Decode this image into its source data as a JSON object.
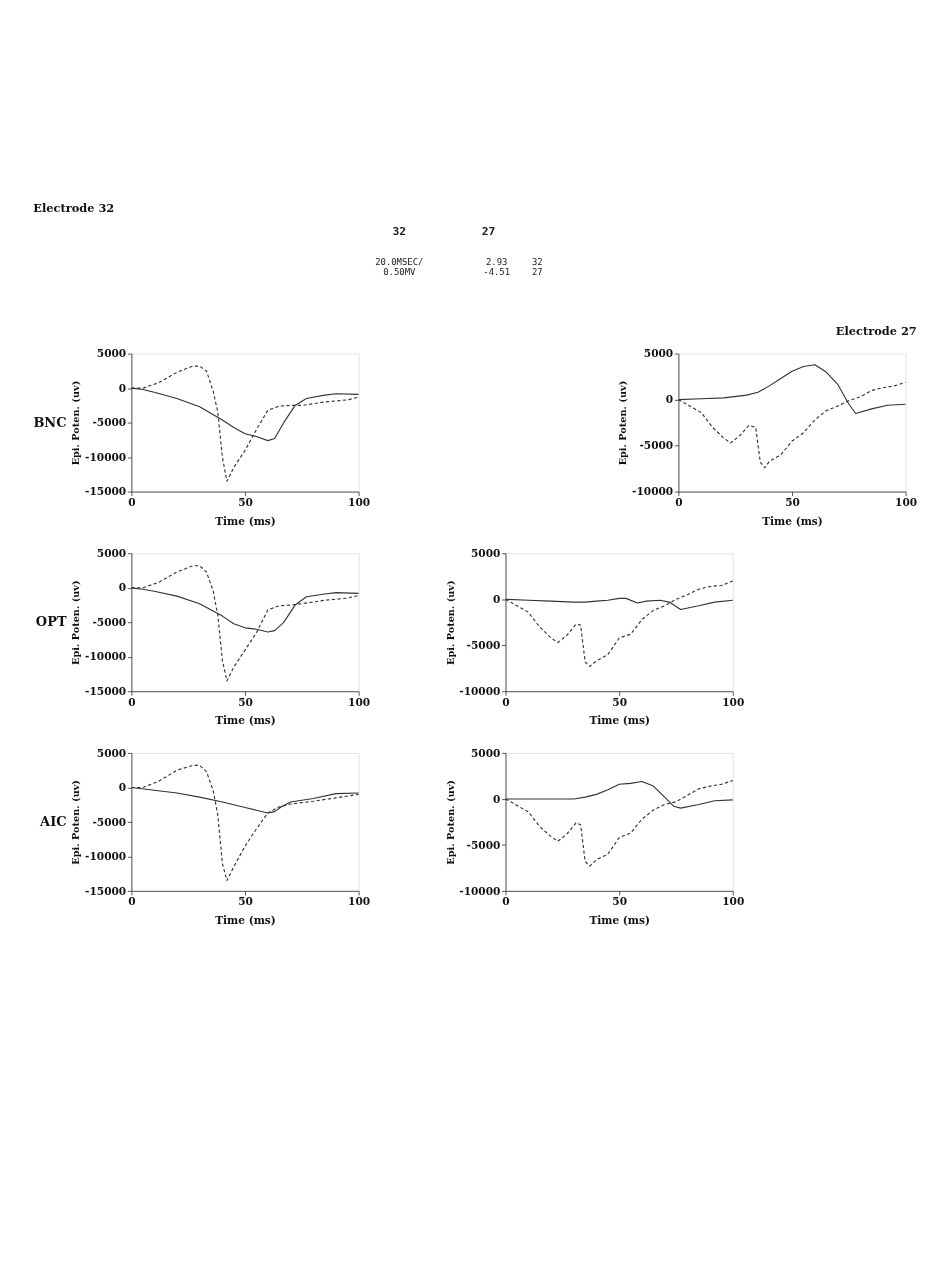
{
  "chart_data": [
    {
      "type": "line",
      "title": "Electrode 32",
      "xlabel": "Time (ms)",
      "ylabel": "Epi. Poten. (uv)",
      "xlim": [
        0,
        100
      ],
      "xticks": [
        0,
        50,
        100
      ],
      "ylim": [
        -15000,
        5000
      ],
      "yticks": [
        -15000,
        -10000,
        -5000,
        0,
        5000
      ],
      "grid": false,
      "annotations": [
        "BNC",
        "32",
        "27",
        "20.0MSEC/",
        "0.50MV",
        "2.93",
        "-4.51",
        "32",
        "27"
      ],
      "series": [
        {
          "color": "#333333",
          "line_style": "solid",
          "x": [
            0,
            5,
            10,
            20,
            30,
            40,
            45,
            50,
            55,
            60,
            63,
            67,
            72,
            77,
            85,
            90,
            100
          ],
          "values": [
            0,
            -200,
            -600,
            -1500,
            -2700,
            -4600,
            -5700,
            -6600,
            -7000,
            -7600,
            -7300,
            -5000,
            -2500,
            -1500,
            -1000,
            -800,
            -900
          ]
        },
        {
          "color": "#333333",
          "line_style": "dashed",
          "x": [
            0,
            5,
            12,
            20,
            27,
            30,
            33,
            36,
            38,
            40,
            42,
            45,
            50,
            55,
            60,
            65,
            70,
            75,
            85,
            95,
            100
          ],
          "values": [
            0,
            0,
            800,
            2300,
            3200,
            3200,
            2500,
            -500,
            -3500,
            -10000,
            -13500,
            -11500,
            -9000,
            -6000,
            -3200,
            -2600,
            -2500,
            -2500,
            -2000,
            -1700,
            -1300
          ]
        }
      ]
    },
    {
      "type": "line",
      "title": "Electrode 27",
      "xlabel": "Time (ms)",
      "ylabel": "Epi. Poten. (uv)",
      "xlim": [
        0,
        100
      ],
      "xticks": [
        0,
        50,
        100
      ],
      "ylim": [
        -10000,
        5000
      ],
      "yticks": [
        -10000,
        -5000,
        0,
        5000
      ],
      "grid": false,
      "series": [
        {
          "color": "#333333",
          "line_style": "solid",
          "x": [
            0,
            10,
            20,
            30,
            35,
            40,
            45,
            50,
            55,
            60,
            65,
            70,
            75,
            78,
            85,
            92,
            100
          ],
          "values": [
            0,
            100,
            200,
            500,
            800,
            1500,
            2300,
            3100,
            3600,
            3800,
            3000,
            1700,
            -500,
            -1500,
            -1000,
            -600,
            -500
          ]
        },
        {
          "color": "#333333",
          "line_style": "dashed",
          "x": [
            0,
            5,
            10,
            15,
            20,
            23,
            27,
            31,
            34,
            36,
            38,
            40,
            45,
            50,
            55,
            60,
            65,
            70,
            75,
            80,
            85,
            90,
            95,
            100
          ],
          "values": [
            0,
            -700,
            -1400,
            -3000,
            -4200,
            -4700,
            -3900,
            -2800,
            -3000,
            -6800,
            -7400,
            -6700,
            -6000,
            -4500,
            -3600,
            -2200,
            -1200,
            -700,
            -100,
            300,
            1000,
            1300,
            1500,
            1900
          ]
        }
      ]
    },
    {
      "type": "line",
      "xlabel": "Time (ms)",
      "ylabel": "Epi. Poten. (uv)",
      "xlim": [
        0,
        100
      ],
      "xticks": [
        0,
        50,
        100
      ],
      "ylim": [
        -15000,
        5000
      ],
      "yticks": [
        -15000,
        -10000,
        -5000,
        0,
        5000
      ],
      "grid": false,
      "annotations": [
        "OPT"
      ],
      "series": [
        {
          "color": "#333333",
          "line_style": "solid",
          "x": [
            0,
            5,
            10,
            20,
            30,
            40,
            45,
            50,
            55,
            60,
            63,
            67,
            72,
            77,
            85,
            90,
            100
          ],
          "values": [
            0,
            -200,
            -500,
            -1200,
            -2300,
            -4100,
            -5200,
            -5800,
            -6000,
            -6400,
            -6200,
            -5000,
            -2500,
            -1300,
            -900,
            -700,
            -800
          ]
        },
        {
          "color": "#333333",
          "line_style": "dashed",
          "x": [
            0,
            5,
            12,
            20,
            27,
            30,
            33,
            36,
            38,
            40,
            42,
            45,
            50,
            55,
            60,
            65,
            70,
            75,
            85,
            95,
            100
          ],
          "values": [
            0,
            0,
            800,
            2300,
            3200,
            3200,
            2300,
            -500,
            -4000,
            -10500,
            -13500,
            -11500,
            -9000,
            -6500,
            -3200,
            -2600,
            -2500,
            -2300,
            -1800,
            -1500,
            -1100
          ]
        }
      ]
    },
    {
      "type": "line",
      "xlabel": "Time (ms)",
      "ylabel": "Epi. Poten. (uv)",
      "xlim": [
        0,
        100
      ],
      "xticks": [
        0,
        50,
        100
      ],
      "ylim": [
        -10000,
        5000
      ],
      "yticks": [
        -10000,
        -5000,
        0,
        5000
      ],
      "grid": false,
      "series": [
        {
          "color": "#333333",
          "line_style": "solid",
          "x": [
            0,
            10,
            20,
            30,
            35,
            40,
            45,
            50,
            53,
            58,
            62,
            68,
            72,
            77,
            85,
            92,
            100
          ],
          "values": [
            0,
            -100,
            -200,
            -300,
            -300,
            -200,
            -100,
            100,
            100,
            -400,
            -200,
            -100,
            -300,
            -1100,
            -700,
            -300,
            -100
          ]
        },
        {
          "color": "#333333",
          "line_style": "dashed",
          "x": [
            0,
            5,
            10,
            15,
            20,
            23,
            27,
            31,
            33,
            35,
            37,
            40,
            45,
            50,
            55,
            60,
            65,
            70,
            75,
            80,
            85,
            90,
            95,
            100
          ],
          "values": [
            0,
            -700,
            -1400,
            -3000,
            -4200,
            -4700,
            -3900,
            -2700,
            -2800,
            -6800,
            -7300,
            -6700,
            -6000,
            -4200,
            -3800,
            -2200,
            -1200,
            -700,
            0,
            500,
            1100,
            1400,
            1500,
            2000
          ]
        }
      ]
    },
    {
      "type": "line",
      "xlabel": "Time (ms)",
      "ylabel": "Epi. Poten. (uv)",
      "xlim": [
        0,
        100
      ],
      "xticks": [
        0,
        50,
        100
      ],
      "ylim": [
        -15000,
        5000
      ],
      "yticks": [
        -15000,
        -10000,
        -5000,
        0,
        5000
      ],
      "grid": false,
      "annotations": [
        "AIC"
      ],
      "series": [
        {
          "color": "#333333",
          "line_style": "solid",
          "x": [
            0,
            10,
            20,
            30,
            40,
            50,
            55,
            60,
            63,
            66,
            70,
            80,
            90,
            100
          ],
          "values": [
            0,
            -400,
            -800,
            -1400,
            -2100,
            -2900,
            -3300,
            -3700,
            -3500,
            -2800,
            -2100,
            -1600,
            -900,
            -800
          ]
        },
        {
          "color": "#333333",
          "line_style": "dashed",
          "x": [
            0,
            5,
            12,
            20,
            27,
            30,
            33,
            36,
            38,
            40,
            42,
            45,
            50,
            55,
            60,
            65,
            70,
            80,
            90,
            100
          ],
          "values": [
            0,
            0,
            900,
            2500,
            3200,
            3200,
            2300,
            -500,
            -4000,
            -11000,
            -13500,
            -11500,
            -8500,
            -6000,
            -3700,
            -2800,
            -2400,
            -2000,
            -1500,
            -1000
          ]
        }
      ]
    },
    {
      "type": "line",
      "xlabel": "Time (ms)",
      "ylabel": "Epi. Poten. (uv)",
      "xlim": [
        0,
        100
      ],
      "xticks": [
        0,
        50,
        100
      ],
      "ylim": [
        -10000,
        5000
      ],
      "yticks": [
        -10000,
        -5000,
        0,
        5000
      ],
      "grid": false,
      "series": [
        {
          "color": "#333333",
          "line_style": "solid",
          "x": [
            0,
            10,
            20,
            30,
            35,
            40,
            45,
            50,
            55,
            60,
            65,
            70,
            74,
            77,
            85,
            92,
            100
          ],
          "values": [
            0,
            0,
            0,
            0,
            200,
            500,
            1000,
            1600,
            1700,
            1900,
            1400,
            200,
            -800,
            -1000,
            -600,
            -200,
            -100
          ]
        },
        {
          "color": "#333333",
          "line_style": "dashed",
          "x": [
            0,
            5,
            10,
            15,
            20,
            23,
            27,
            31,
            33,
            35,
            37,
            40,
            45,
            50,
            55,
            60,
            65,
            70,
            75,
            80,
            85,
            90,
            95,
            100
          ],
          "values": [
            0,
            -700,
            -1400,
            -3000,
            -4100,
            -4600,
            -3800,
            -2600,
            -2800,
            -6800,
            -7300,
            -6600,
            -6000,
            -4200,
            -3700,
            -2200,
            -1200,
            -600,
            -300,
            400,
            1100,
            1400,
            1600,
            2000
          ]
        }
      ]
    }
  ]
}
